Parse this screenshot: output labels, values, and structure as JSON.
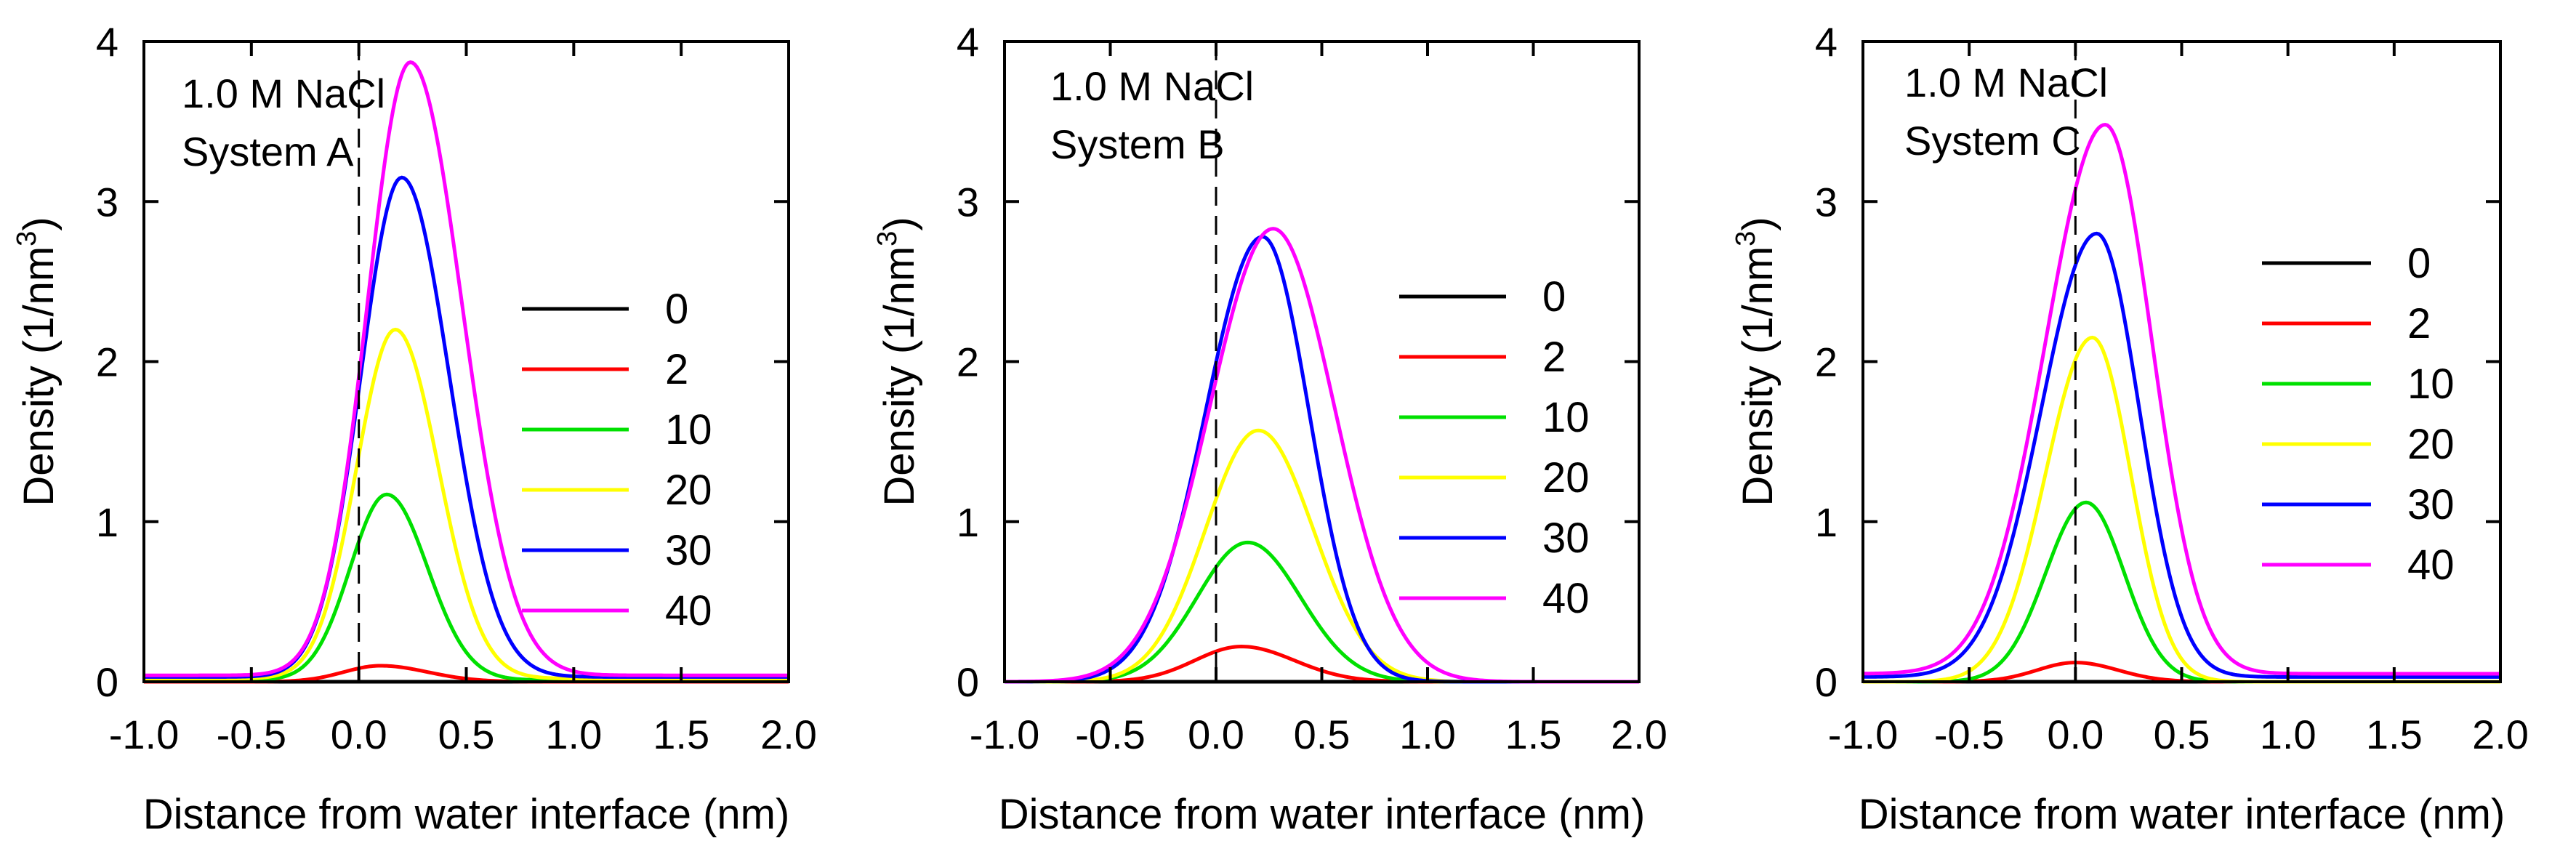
{
  "chart_data": [
    {
      "type": "line",
      "annotation": [
        "1.0 M NaCl",
        "System A"
      ],
      "xlabel": "Distance from water interface (nm)",
      "ylabel": "Density (1/nm",
      "ylabel_sup": "3",
      "ylabel_tail": ")",
      "xlim": [
        -1.0,
        2.0
      ],
      "ylim": [
        0,
        4
      ],
      "xticks": [
        "-1.0",
        "-0.5",
        "0.0",
        "0.5",
        "1.0",
        "1.5",
        "2.0"
      ],
      "yticks": [
        "0",
        "1",
        "2",
        "3",
        "4"
      ],
      "legend_position": "right",
      "series": [
        {
          "name": "0",
          "color": "#000000",
          "peak": 0.0,
          "center": 0.0,
          "sigma_left": 0.25,
          "sigma_right": 0.25,
          "base": 0.0
        },
        {
          "name": "2",
          "color": "#ff0000",
          "peak": 0.1,
          "center": 0.1,
          "sigma_left": 0.17,
          "sigma_right": 0.22,
          "base": 0.0
        },
        {
          "name": "10",
          "color": "#00e000",
          "peak": 1.17,
          "center": 0.13,
          "sigma_left": 0.17,
          "sigma_right": 0.19,
          "base": 0.01
        },
        {
          "name": "20",
          "color": "#ffff00",
          "peak": 2.2,
          "center": 0.17,
          "sigma_left": 0.18,
          "sigma_right": 0.2,
          "base": 0.02
        },
        {
          "name": "30",
          "color": "#0000ff",
          "peak": 3.15,
          "center": 0.2,
          "sigma_left": 0.19,
          "sigma_right": 0.22,
          "base": 0.03
        },
        {
          "name": "40",
          "color": "#ff00ff",
          "peak": 3.87,
          "center": 0.24,
          "sigma_left": 0.2,
          "sigma_right": 0.24,
          "base": 0.04
        }
      ]
    },
    {
      "type": "line",
      "annotation": [
        "1.0 M NaCl",
        "System B"
      ],
      "xlabel": "Distance from water interface (nm)",
      "ylabel": "Density (1/nm",
      "ylabel_sup": "3",
      "ylabel_tail": ")",
      "xlim": [
        -1.0,
        2.0
      ],
      "ylim": [
        0,
        4
      ],
      "xticks": [
        "-1.0",
        "-0.5",
        "0.0",
        "0.5",
        "1.0",
        "1.5",
        "2.0"
      ],
      "yticks": [
        "0",
        "1",
        "2",
        "3",
        "4"
      ],
      "legend_position": "right",
      "series": [
        {
          "name": "0",
          "color": "#000000",
          "peak": 0.0,
          "center": 0.0,
          "sigma_left": 0.25,
          "sigma_right": 0.25,
          "base": 0.0
        },
        {
          "name": "2",
          "color": "#ff0000",
          "peak": 0.22,
          "center": 0.12,
          "sigma_left": 0.22,
          "sigma_right": 0.25,
          "base": 0.0
        },
        {
          "name": "10",
          "color": "#00e000",
          "peak": 0.87,
          "center": 0.15,
          "sigma_left": 0.24,
          "sigma_right": 0.25,
          "base": 0.0
        },
        {
          "name": "20",
          "color": "#ffff00",
          "peak": 1.57,
          "center": 0.2,
          "sigma_left": 0.25,
          "sigma_right": 0.26,
          "base": 0.0
        },
        {
          "name": "30",
          "color": "#0000ff",
          "peak": 2.78,
          "center": 0.22,
          "sigma_left": 0.27,
          "sigma_right": 0.22,
          "base": 0.0
        },
        {
          "name": "40",
          "color": "#ff00ff",
          "peak": 2.83,
          "center": 0.27,
          "sigma_left": 0.3,
          "sigma_right": 0.29,
          "base": 0.0
        }
      ]
    },
    {
      "type": "line",
      "annotation": [
        "1.0 M NaCl",
        "System C"
      ],
      "xlabel": "Distance from water interface (nm)",
      "ylabel": "Density (1/nm",
      "ylabel_sup": "3",
      "ylabel_tail": ")",
      "xlim": [
        -1.0,
        2.0
      ],
      "ylim": [
        0,
        4
      ],
      "xticks": [
        "-1.0",
        "-0.5",
        "0.0",
        "0.5",
        "1.0",
        "1.5",
        "2.0"
      ],
      "yticks": [
        "0",
        "1",
        "2",
        "3",
        "4"
      ],
      "legend_position": "right",
      "series": [
        {
          "name": "0",
          "color": "#000000",
          "peak": 0.0,
          "center": 0.0,
          "sigma_left": 0.25,
          "sigma_right": 0.25,
          "base": 0.0
        },
        {
          "name": "2",
          "color": "#ff0000",
          "peak": 0.12,
          "center": 0.0,
          "sigma_left": 0.18,
          "sigma_right": 0.2,
          "base": 0.0
        },
        {
          "name": "10",
          "color": "#00e000",
          "peak": 1.12,
          "center": 0.05,
          "sigma_left": 0.19,
          "sigma_right": 0.18,
          "base": 0.0
        },
        {
          "name": "20",
          "color": "#ffff00",
          "peak": 2.15,
          "center": 0.08,
          "sigma_left": 0.22,
          "sigma_right": 0.18,
          "base": 0.0
        },
        {
          "name": "30",
          "color": "#0000ff",
          "peak": 2.8,
          "center": 0.1,
          "sigma_left": 0.26,
          "sigma_right": 0.2,
          "base": 0.03
        },
        {
          "name": "40",
          "color": "#ff00ff",
          "peak": 3.48,
          "center": 0.14,
          "sigma_left": 0.28,
          "sigma_right": 0.22,
          "base": 0.05
        }
      ]
    }
  ]
}
